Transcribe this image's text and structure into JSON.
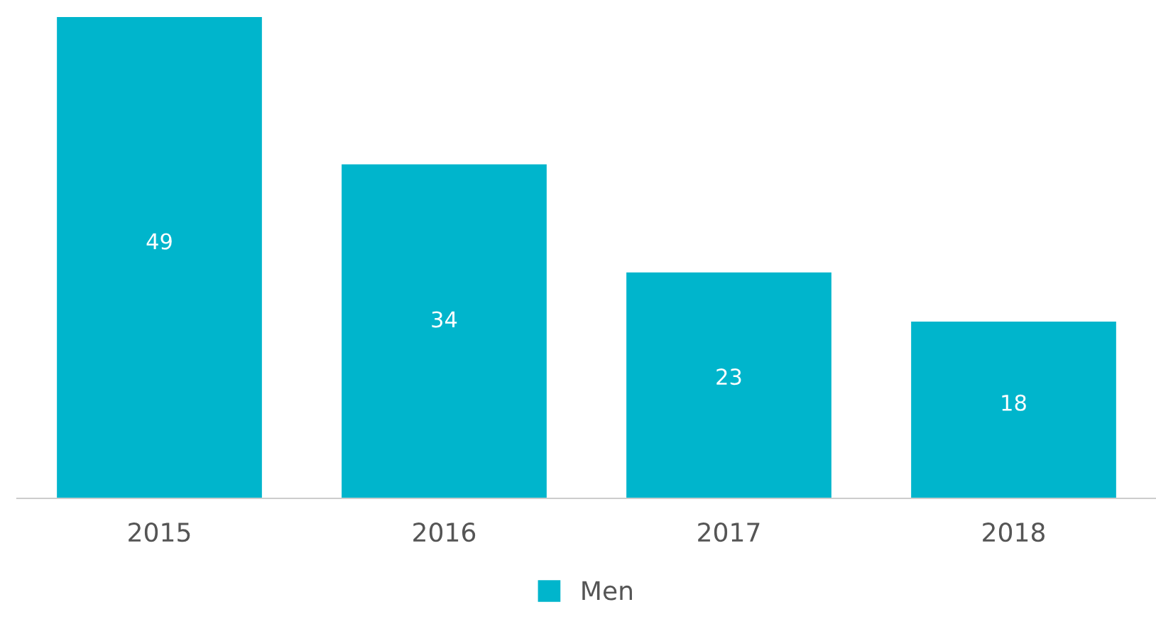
{
  "chart_data": {
    "type": "bar",
    "categories": [
      "2015",
      "2016",
      "2017",
      "2018"
    ],
    "series": [
      {
        "name": "Men",
        "color": "#00b5cc",
        "values": [
          49,
          34,
          23,
          18
        ]
      }
    ],
    "data_labels": true,
    "legend": "bottom",
    "grid": false
  }
}
